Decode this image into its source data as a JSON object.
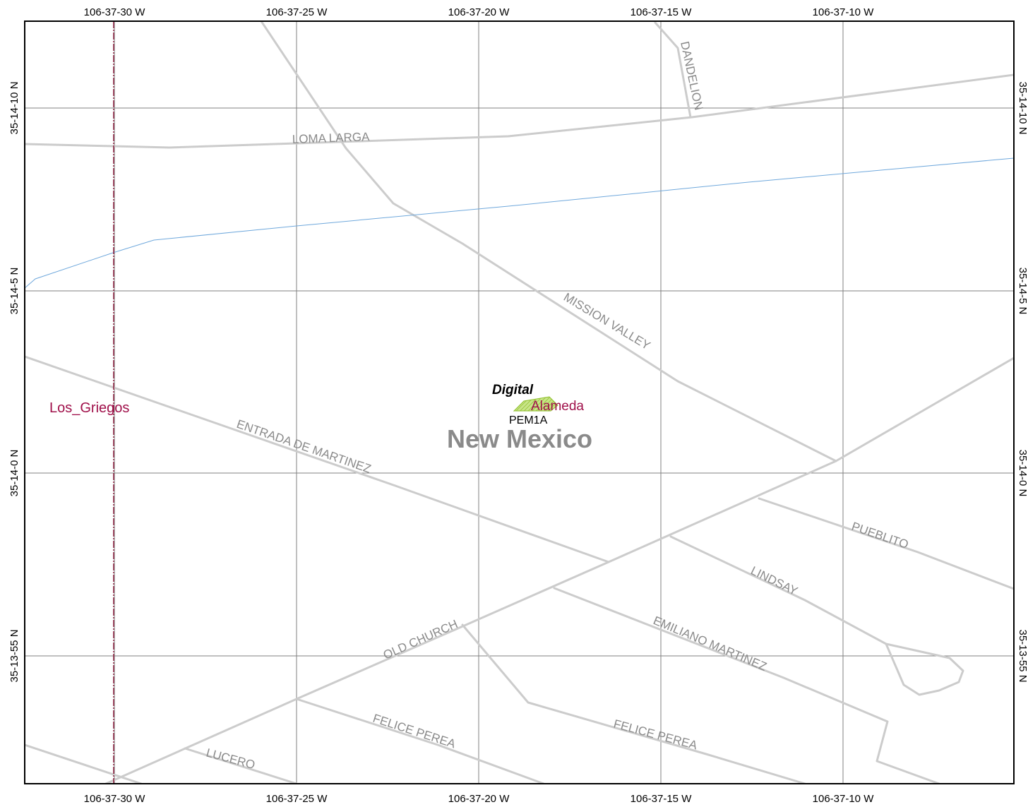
{
  "map": {
    "place_label": "New Mexico",
    "grid_labels": {
      "top": [
        "106-37-30 W",
        "106-37-25 W",
        "106-37-20 W",
        "106-37-15 W",
        "106-37-10 W"
      ],
      "bottom": [
        "106-37-30 W",
        "106-37-25 W",
        "106-37-20 W",
        "106-37-15 W",
        "106-37-10 W"
      ],
      "left": [
        "35-14-10 N",
        "35-14-5 N",
        "35-14-0 N",
        "35-13-55 N"
      ],
      "right": [
        "35-14-10 N",
        "35-14-5 N",
        "35-14-0 N",
        "35-13-55 N"
      ]
    },
    "roads": {
      "loma_larga": "LOMA LARGA",
      "dandelion": "DANDELION",
      "mission_valley": "MISSION VALLEY",
      "entrada_de_martinez": "ENTRADA DE MARTINEZ",
      "pueblito": "PUEBLITO",
      "lindsay": "LINDSAY",
      "old_church": "OLD CHURCH",
      "emiliano_martinez": "EMILIANO MARTINEZ",
      "felice_perea_1": "FELICE PEREA",
      "felice_perea_2": "FELICE PEREA",
      "lucero": "LUCERO"
    },
    "labels": {
      "digital": "Digital",
      "alameda": "Alameda",
      "pem1a": "PEM1A",
      "los_griegos": "Los_Griegos"
    },
    "colors": {
      "road": "#cccccc",
      "road_label": "#8a8a8a",
      "grid": "#808080",
      "waterway": "#6fa8dc",
      "boundary": "#8b1a3a",
      "place_label": "#8a8a8a",
      "community_label": "#a0104a",
      "wetland": "#9fcc3b"
    }
  }
}
